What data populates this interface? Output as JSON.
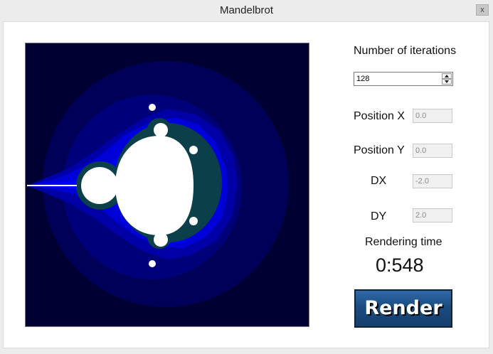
{
  "window": {
    "title": "Mandelbrot",
    "close_label": "x"
  },
  "iterations": {
    "label": "Number of iterations",
    "value": "128"
  },
  "position_x": {
    "label": "Position X",
    "value": "0.0"
  },
  "position_y": {
    "label": "Position Y",
    "value": "0.0"
  },
  "dx": {
    "label": "DX",
    "value": "-2.0"
  },
  "dy": {
    "label": "DY",
    "value": "2.0"
  },
  "rendering": {
    "label": "Rendering time",
    "value": "0:548"
  },
  "render_button": {
    "label": "Render"
  },
  "colors": {
    "background_outer": "#000033",
    "band_1": "#00006e",
    "band_2": "#0000a6",
    "band_3": "#0000e6",
    "set_fill": "#ffffff",
    "edge_green": "#2e8b57",
    "button_blue": "#1a4c80"
  }
}
